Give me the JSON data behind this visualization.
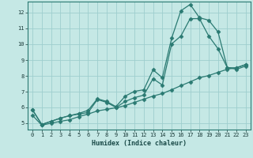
{
  "xlabel": "Humidex (Indice chaleur)",
  "xlim": [
    -0.5,
    23.5
  ],
  "ylim": [
    4.6,
    12.7
  ],
  "xticks": [
    0,
    1,
    2,
    3,
    4,
    5,
    6,
    7,
    8,
    9,
    10,
    11,
    12,
    13,
    14,
    15,
    16,
    17,
    18,
    19,
    20,
    21,
    22,
    23
  ],
  "yticks": [
    5,
    6,
    7,
    8,
    9,
    10,
    11,
    12
  ],
  "bg_color": "#c5e8e5",
  "grid_color": "#9ecece",
  "line_color": "#2a7a72",
  "line1_x": [
    0,
    1,
    2,
    3,
    4,
    5,
    6,
    7,
    8,
    9,
    10,
    11,
    12,
    13,
    14,
    15,
    16,
    17,
    18,
    19,
    20,
    21,
    22,
    23
  ],
  "line1_y": [
    5.85,
    4.92,
    5.12,
    5.32,
    5.48,
    5.62,
    5.82,
    6.55,
    6.38,
    6.05,
    6.72,
    7.02,
    7.12,
    8.38,
    7.88,
    10.38,
    12.12,
    12.52,
    11.68,
    11.52,
    10.78,
    8.52,
    8.5,
    8.72
  ],
  "line2_x": [
    0,
    1,
    2,
    3,
    4,
    5,
    6,
    7,
    8,
    9,
    10,
    11,
    12,
    13,
    14,
    15,
    16,
    17,
    18,
    19,
    20,
    21,
    22,
    23
  ],
  "line2_y": [
    5.85,
    4.92,
    5.12,
    5.32,
    5.48,
    5.58,
    5.68,
    6.5,
    6.32,
    6.0,
    6.38,
    6.62,
    6.78,
    7.82,
    7.42,
    10.02,
    10.52,
    11.62,
    11.62,
    10.52,
    9.72,
    8.52,
    8.42,
    8.62
  ],
  "line3_x": [
    0,
    1,
    2,
    3,
    4,
    5,
    6,
    7,
    8,
    9,
    10,
    11,
    12,
    13,
    14,
    15,
    16,
    17,
    18,
    19,
    20,
    21,
    22,
    23
  ],
  "line3_y": [
    5.5,
    4.88,
    5.0,
    5.12,
    5.22,
    5.42,
    5.58,
    5.78,
    5.88,
    5.98,
    6.12,
    6.32,
    6.52,
    6.72,
    6.88,
    7.12,
    7.38,
    7.62,
    7.88,
    8.02,
    8.22,
    8.42,
    8.52,
    8.72
  ]
}
